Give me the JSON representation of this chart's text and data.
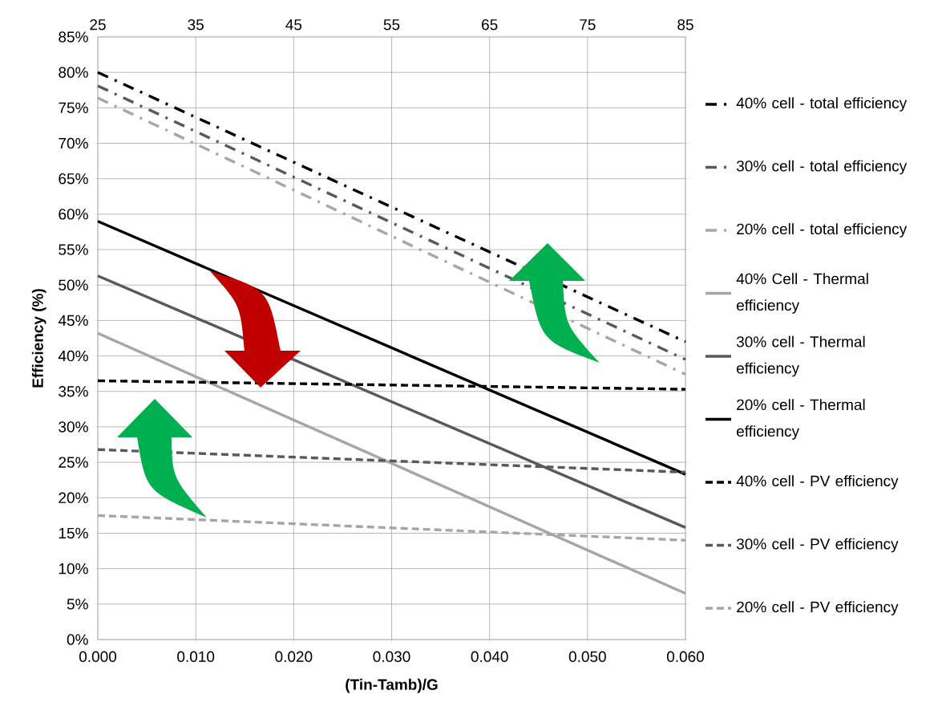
{
  "chart_data": {
    "type": "line",
    "xlabel": "(Tin-Tamb)/G",
    "ylabel": "Efficiency (%)",
    "grid": true,
    "legend": "right",
    "xlim": [
      0,
      0.06
    ],
    "xticks": [
      {
        "value": 0,
        "label": "0.000"
      },
      {
        "value": 0.01,
        "label": "0.010"
      },
      {
        "value": 0.02,
        "label": "0.020"
      },
      {
        "value": 0.03,
        "label": "0.030"
      },
      {
        "value": 0.04,
        "label": "0.040"
      },
      {
        "value": 0.05,
        "label": "0.050"
      },
      {
        "value": 0.06,
        "label": "0.060"
      }
    ],
    "x2lim": [
      25,
      85
    ],
    "x2ticks": [
      25,
      35,
      45,
      55,
      65,
      75,
      85
    ],
    "ylim": [
      0,
      85
    ],
    "yticks": [
      {
        "value": 0,
        "label": "0%"
      },
      {
        "value": 5,
        "label": "5%"
      },
      {
        "value": 10,
        "label": "10%"
      },
      {
        "value": 15,
        "label": "15%"
      },
      {
        "value": 20,
        "label": "20%"
      },
      {
        "value": 25,
        "label": "25%"
      },
      {
        "value": 30,
        "label": "30%"
      },
      {
        "value": 35,
        "label": "35%"
      },
      {
        "value": 40,
        "label": "40%"
      },
      {
        "value": 45,
        "label": "45%"
      },
      {
        "value": 50,
        "label": "50%"
      },
      {
        "value": 55,
        "label": "55%"
      },
      {
        "value": 60,
        "label": "60%"
      },
      {
        "value": 65,
        "label": "65%"
      },
      {
        "value": 70,
        "label": "70%"
      },
      {
        "value": 75,
        "label": "75%"
      },
      {
        "value": 80,
        "label": "80%"
      },
      {
        "value": 85,
        "label": "85%"
      }
    ],
    "x": [
      0,
      0.06
    ],
    "series": [
      {
        "name": "40% cell - total efficiency",
        "color": "#000000",
        "line_style": "dashdot",
        "values": [
          80,
          42
        ]
      },
      {
        "name": "30% cell - total efficiency",
        "color": "#595959",
        "line_style": "dashdot",
        "values": [
          78.1,
          39.5
        ]
      },
      {
        "name": "20% cell - total efficiency",
        "color": "#a6a6a6",
        "line_style": "dashdot",
        "values": [
          76.4,
          37.4
        ]
      },
      {
        "name": "40% Cell - Thermal efficiency",
        "color": "#a6a6a6",
        "line_style": "solid",
        "values": [
          43.2,
          6.5
        ]
      },
      {
        "name": "30% cell - Thermal efficiency",
        "color": "#595959",
        "line_style": "solid",
        "values": [
          51.3,
          15.8
        ]
      },
      {
        "name": "20% cell - Thermal efficiency",
        "color": "#000000",
        "line_style": "solid",
        "values": [
          59,
          23.3
        ]
      },
      {
        "name": "40% cell - PV efficiency",
        "color": "#000000",
        "line_style": "dashed",
        "values": [
          36.5,
          35.3
        ]
      },
      {
        "name": "30% cell - PV efficiency",
        "color": "#595959",
        "line_style": "dashed",
        "values": [
          26.8,
          23.6
        ]
      },
      {
        "name": "20% cell - PV efficiency",
        "color": "#a6a6a6",
        "line_style": "dashed",
        "values": [
          17.5,
          14
        ]
      }
    ]
  }
}
